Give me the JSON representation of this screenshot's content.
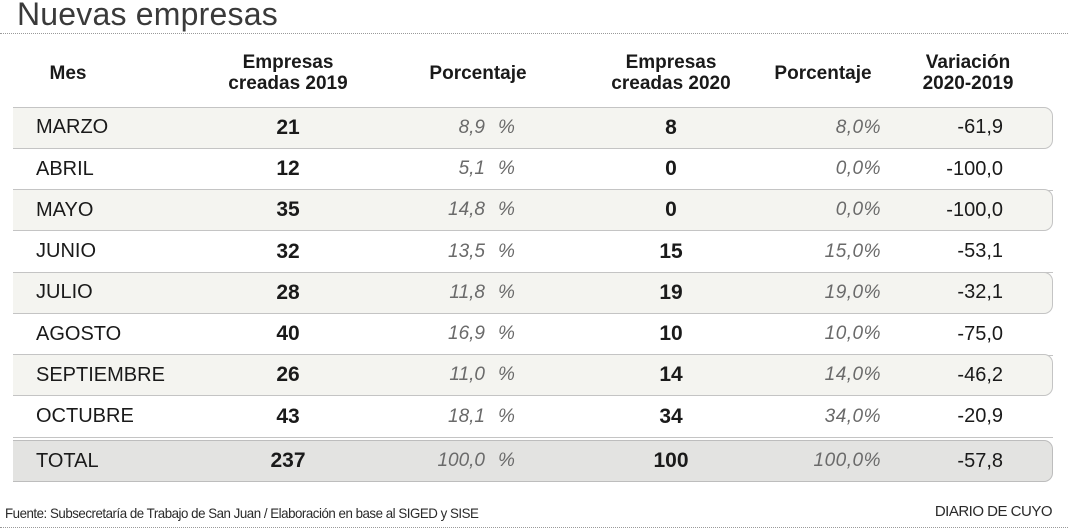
{
  "title": "Nuevas empresas",
  "columns": {
    "mes": "Mes",
    "empresas_2019": [
      "Empresas",
      "creadas 2019"
    ],
    "porcentaje_2019": "Porcentaje",
    "empresas_2020": [
      "Empresas",
      "creadas 2020"
    ],
    "porcentaje_2020": "Porcentaje",
    "variacion": [
      "Variación",
      "2020-2019"
    ]
  },
  "rows": [
    {
      "mes": "MARZO",
      "n2019": "21",
      "p2019": "8,9",
      "p2019_unit": "%",
      "n2020": "8",
      "p2020": "8,0%",
      "var": "-61,9"
    },
    {
      "mes": "ABRIL",
      "n2019": "12",
      "p2019": "5,1",
      "p2019_unit": "%",
      "n2020": "0",
      "p2020": "0,0%",
      "var": "-100,0"
    },
    {
      "mes": "MAYO",
      "n2019": "35",
      "p2019": "14,8",
      "p2019_unit": "%",
      "n2020": "0",
      "p2020": "0,0%",
      "var": "-100,0"
    },
    {
      "mes": "JUNIO",
      "n2019": "32",
      "p2019": "13,5",
      "p2019_unit": "%",
      "n2020": "15",
      "p2020": "15,0%",
      "var": "-53,1"
    },
    {
      "mes": "JULIO",
      "n2019": "28",
      "p2019": "11,8",
      "p2019_unit": "%",
      "n2020": "19",
      "p2020": "19,0%",
      "var": "-32,1"
    },
    {
      "mes": "AGOSTO",
      "n2019": "40",
      "p2019": "16,9",
      "p2019_unit": "%",
      "n2020": "10",
      "p2020": "10,0%",
      "var": "-75,0"
    },
    {
      "mes": "SEPTIEMBRE",
      "n2019": "26",
      "p2019": "11,0",
      "p2019_unit": "%",
      "n2020": "14",
      "p2020": "14,0%",
      "var": "-46,2"
    },
    {
      "mes": "OCTUBRE",
      "n2019": "43",
      "p2019": "18,1",
      "p2019_unit": "%",
      "n2020": "34",
      "p2020": "34,0%",
      "var": "-20,9"
    }
  ],
  "total": {
    "mes": "TOTAL",
    "n2019": "237",
    "p2019": "100,0",
    "p2019_unit": "%",
    "n2020": "100",
    "p2020": "100,0%",
    "var": "-57,8"
  },
  "source": "Fuente: Subsecretaría de Trabajo de San Juan / Elaboración en base al SIGED y SISE",
  "brand": "DIARIO DE CUYO",
  "colors": {
    "shaded_row": "#f4f4f0",
    "total_row": "#e3e3e1",
    "percent_text": "#6a6a6a"
  }
}
